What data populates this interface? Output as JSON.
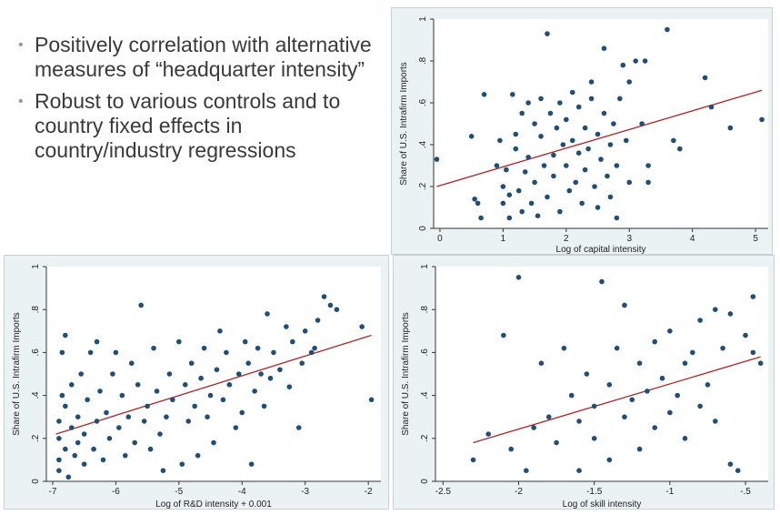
{
  "bullets": [
    "Positively correlation with alternative measures of “headquarter intensity”",
    "Robust to various controls and to country fixed effects in country/industry regressions"
  ],
  "colors": {
    "point": "#1f4e79",
    "fit_line": "#b22222",
    "panel_bg": "#eaf2f3",
    "plot_bg": "#ffffff"
  },
  "chart_data": [
    {
      "type": "scatter",
      "xlabel": "Log of capital intensity",
      "ylabel": "Share of U.S. Intrafirm Imports",
      "xlim": [
        -0.1,
        5.2
      ],
      "ylim": [
        0,
        1
      ],
      "xticks": [
        0,
        1,
        2,
        3,
        4,
        5
      ],
      "yticks": [
        0,
        0.2,
        0.4,
        0.6,
        0.8,
        1
      ],
      "xtick_labels": [
        "0",
        "1",
        "2",
        "3",
        "4",
        "5"
      ],
      "ytick_labels": [
        "0",
        ".2",
        ".4",
        ".6",
        ".8",
        "1"
      ],
      "fit_line": [
        [
          -0.05,
          0.2
        ],
        [
          5.1,
          0.66
        ]
      ],
      "points": [
        [
          -0.05,
          0.33
        ],
        [
          0.5,
          0.44
        ],
        [
          0.55,
          0.14
        ],
        [
          0.6,
          0.12
        ],
        [
          0.65,
          0.05
        ],
        [
          0.7,
          0.64
        ],
        [
          0.9,
          0.3
        ],
        [
          0.95,
          0.42
        ],
        [
          1,
          0.2
        ],
        [
          1,
          0.12
        ],
        [
          1.05,
          0.28
        ],
        [
          1.1,
          0.05
        ],
        [
          1.1,
          0.16
        ],
        [
          1.15,
          0.64
        ],
        [
          1.2,
          0.38
        ],
        [
          1.2,
          0.45
        ],
        [
          1.25,
          0.18
        ],
        [
          1.3,
          0.08
        ],
        [
          1.3,
          0.55
        ],
        [
          1.35,
          0.27
        ],
        [
          1.4,
          0.34
        ],
        [
          1.4,
          0.6
        ],
        [
          1.45,
          0.12
        ],
        [
          1.5,
          0.5
        ],
        [
          1.5,
          0.22
        ],
        [
          1.55,
          0.06
        ],
        [
          1.6,
          0.44
        ],
        [
          1.6,
          0.62
        ],
        [
          1.65,
          0.3
        ],
        [
          1.7,
          0.93
        ],
        [
          1.7,
          0.15
        ],
        [
          1.75,
          0.55
        ],
        [
          1.8,
          0.35
        ],
        [
          1.8,
          0.25
        ],
        [
          1.85,
          0.48
        ],
        [
          1.9,
          0.6
        ],
        [
          1.9,
          0.08
        ],
        [
          1.95,
          0.4
        ],
        [
          2,
          0.3
        ],
        [
          2,
          0.52
        ],
        [
          2.05,
          0.18
        ],
        [
          2.1,
          0.65
        ],
        [
          2.1,
          0.42
        ],
        [
          2.15,
          0.22
        ],
        [
          2.2,
          0.36
        ],
        [
          2.2,
          0.58
        ],
        [
          2.25,
          0.12
        ],
        [
          2.3,
          0.48
        ],
        [
          2.3,
          0.28
        ],
        [
          2.35,
          0.38
        ],
        [
          2.4,
          0.62
        ],
        [
          2.4,
          0.7
        ],
        [
          2.45,
          0.2
        ],
        [
          2.5,
          0.45
        ],
        [
          2.5,
          0.1
        ],
        [
          2.55,
          0.33
        ],
        [
          2.6,
          0.55
        ],
        [
          2.6,
          0.86
        ],
        [
          2.65,
          0.25
        ],
        [
          2.7,
          0.4
        ],
        [
          2.7,
          0.15
        ],
        [
          2.75,
          0.5
        ],
        [
          2.8,
          0.05
        ],
        [
          2.8,
          0.3
        ],
        [
          2.85,
          0.62
        ],
        [
          2.9,
          0.78
        ],
        [
          2.95,
          0.42
        ],
        [
          3,
          0.22
        ],
        [
          3,
          0.7
        ],
        [
          3.1,
          0.8
        ],
        [
          3.2,
          0.5
        ],
        [
          3.25,
          0.8
        ],
        [
          3.3,
          0.22
        ],
        [
          3.3,
          0.3
        ],
        [
          3.6,
          0.95
        ],
        [
          3.7,
          0.42
        ],
        [
          3.8,
          0.38
        ],
        [
          4.2,
          0.72
        ],
        [
          4.3,
          0.58
        ],
        [
          4.6,
          0.48
        ],
        [
          5.1,
          0.52
        ]
      ]
    },
    {
      "type": "scatter",
      "xlabel": "Log of R&D intensity + 0.001",
      "ylabel": "Share of U.S. Intrafirm Imports",
      "xlim": [
        -7.1,
        -1.8
      ],
      "ylim": [
        0,
        1
      ],
      "xticks": [
        -7,
        -6,
        -5,
        -4,
        -3,
        -2
      ],
      "yticks": [
        0,
        0.2,
        0.4,
        0.6,
        0.8,
        1
      ],
      "xtick_labels": [
        "-7",
        "-6",
        "-5",
        "-4",
        "-3",
        "-2"
      ],
      "ytick_labels": [
        "0",
        ".2",
        ".4",
        ".6",
        ".8",
        "1"
      ],
      "fit_line": [
        [
          -6.95,
          0.22
        ],
        [
          -1.95,
          0.68
        ]
      ],
      "points": [
        [
          -6.9,
          0.05
        ],
        [
          -6.9,
          0.1
        ],
        [
          -6.9,
          0.2
        ],
        [
          -6.9,
          0.28
        ],
        [
          -6.85,
          0.4
        ],
        [
          -6.85,
          0.6
        ],
        [
          -6.8,
          0.15
        ],
        [
          -6.8,
          0.35
        ],
        [
          -6.8,
          0.68
        ],
        [
          -6.75,
          0.02
        ],
        [
          -6.7,
          0.25
        ],
        [
          -6.7,
          0.45
        ],
        [
          -6.65,
          0.12
        ],
        [
          -6.6,
          0.18
        ],
        [
          -6.6,
          0.3
        ],
        [
          -6.55,
          0.5
        ],
        [
          -6.5,
          0.08
        ],
        [
          -6.5,
          0.22
        ],
        [
          -6.45,
          0.38
        ],
        [
          -6.4,
          0.6
        ],
        [
          -6.35,
          0.15
        ],
        [
          -6.3,
          0.28
        ],
        [
          -6.3,
          0.65
        ],
        [
          -6.25,
          0.42
        ],
        [
          -6.2,
          0.1
        ],
        [
          -6.15,
          0.32
        ],
        [
          -6.1,
          0.2
        ],
        [
          -6.05,
          0.5
        ],
        [
          -6,
          0.6
        ],
        [
          -5.95,
          0.25
        ],
        [
          -5.9,
          0.4
        ],
        [
          -5.85,
          0.12
        ],
        [
          -5.8,
          0.3
        ],
        [
          -5.75,
          0.55
        ],
        [
          -5.7,
          0.18
        ],
        [
          -5.65,
          0.45
        ],
        [
          -5.6,
          0.82
        ],
        [
          -5.55,
          0.28
        ],
        [
          -5.5,
          0.35
        ],
        [
          -5.45,
          0.15
        ],
        [
          -5.4,
          0.62
        ],
        [
          -5.35,
          0.42
        ],
        [
          -5.3,
          0.22
        ],
        [
          -5.25,
          0.05
        ],
        [
          -5.2,
          0.3
        ],
        [
          -5.15,
          0.5
        ],
        [
          -5.1,
          0.38
        ],
        [
          -5,
          0.65
        ],
        [
          -4.95,
          0.08
        ],
        [
          -4.9,
          0.45
        ],
        [
          -4.85,
          0.28
        ],
        [
          -4.8,
          0.55
        ],
        [
          -4.75,
          0.35
        ],
        [
          -4.7,
          0.12
        ],
        [
          -4.65,
          0.48
        ],
        [
          -4.6,
          0.62
        ],
        [
          -4.55,
          0.3
        ],
        [
          -4.5,
          0.4
        ],
        [
          -4.45,
          0.18
        ],
        [
          -4.4,
          0.52
        ],
        [
          -4.35,
          0.7
        ],
        [
          -4.3,
          0.38
        ],
        [
          -4.25,
          0.6
        ],
        [
          -4.2,
          0.45
        ],
        [
          -4.1,
          0.25
        ],
        [
          -4.05,
          0.5
        ],
        [
          -4,
          0.32
        ],
        [
          -3.95,
          0.65
        ],
        [
          -3.9,
          0.55
        ],
        [
          -3.85,
          0.08
        ],
        [
          -3.8,
          0.42
        ],
        [
          -3.75,
          0.62
        ],
        [
          -3.7,
          0.5
        ],
        [
          -3.65,
          0.35
        ],
        [
          -3.6,
          0.78
        ],
        [
          -3.55,
          0.48
        ],
        [
          -3.5,
          0.6
        ],
        [
          -3.4,
          0.52
        ],
        [
          -3.3,
          0.72
        ],
        [
          -3.25,
          0.44
        ],
        [
          -3.2,
          0.65
        ],
        [
          -3.1,
          0.25
        ],
        [
          -3.05,
          0.55
        ],
        [
          -3,
          0.7
        ],
        [
          -2.9,
          0.6
        ],
        [
          -2.85,
          0.62
        ],
        [
          -2.8,
          0.75
        ],
        [
          -2.7,
          0.86
        ],
        [
          -2.6,
          0.82
        ],
        [
          -2.5,
          0.8
        ],
        [
          -2.1,
          0.72
        ],
        [
          -1.95,
          0.38
        ]
      ]
    },
    {
      "type": "scatter",
      "xlabel": "Log of skill intensity",
      "ylabel": "Share of U.S. Intrafirm Imports",
      "xlim": [
        -2.55,
        -0.35
      ],
      "ylim": [
        0,
        1
      ],
      "xticks": [
        -2.5,
        -2,
        -1.5,
        -1,
        -0.5
      ],
      "yticks": [
        0,
        0.2,
        0.4,
        0.6,
        0.8,
        1
      ],
      "xtick_labels": [
        "-2.5",
        "-2",
        "-1.5",
        "-1",
        "-.5"
      ],
      "ytick_labels": [
        "0",
        ".2",
        ".4",
        ".6",
        ".8",
        "1"
      ],
      "fit_line": [
        [
          -2.3,
          0.18
        ],
        [
          -0.4,
          0.58
        ]
      ],
      "points": [
        [
          -2.3,
          0.1
        ],
        [
          -2.2,
          0.22
        ],
        [
          -2.1,
          0.68
        ],
        [
          -2.05,
          0.15
        ],
        [
          -2,
          0.95
        ],
        [
          -1.95,
          0.05
        ],
        [
          -1.9,
          0.25
        ],
        [
          -1.85,
          0.55
        ],
        [
          -1.8,
          0.3
        ],
        [
          -1.75,
          0.18
        ],
        [
          -1.7,
          0.62
        ],
        [
          -1.65,
          0.4
        ],
        [
          -1.6,
          0.05
        ],
        [
          -1.6,
          0.28
        ],
        [
          -1.55,
          0.5
        ],
        [
          -1.5,
          0.35
        ],
        [
          -1.5,
          0.2
        ],
        [
          -1.45,
          0.93
        ],
        [
          -1.4,
          0.45
        ],
        [
          -1.4,
          0.1
        ],
        [
          -1.35,
          0.62
        ],
        [
          -1.3,
          0.3
        ],
        [
          -1.3,
          0.82
        ],
        [
          -1.25,
          0.38
        ],
        [
          -1.2,
          0.15
        ],
        [
          -1.2,
          0.55
        ],
        [
          -1.15,
          0.42
        ],
        [
          -1.1,
          0.25
        ],
        [
          -1.1,
          0.65
        ],
        [
          -1.05,
          0.48
        ],
        [
          -1,
          0.32
        ],
        [
          -1,
          0.7
        ],
        [
          -0.95,
          0.4
        ],
        [
          -0.9,
          0.55
        ],
        [
          -0.9,
          0.2
        ],
        [
          -0.85,
          0.6
        ],
        [
          -0.8,
          0.35
        ],
        [
          -0.8,
          0.75
        ],
        [
          -0.75,
          0.45
        ],
        [
          -0.7,
          0.8
        ],
        [
          -0.7,
          0.28
        ],
        [
          -0.65,
          0.62
        ],
        [
          -0.6,
          0.08
        ],
        [
          -0.6,
          0.78
        ],
        [
          -0.55,
          0.05
        ],
        [
          -0.5,
          0.68
        ],
        [
          -0.45,
          0.86
        ],
        [
          -0.45,
          0.6
        ],
        [
          -0.4,
          0.55
        ]
      ]
    }
  ]
}
